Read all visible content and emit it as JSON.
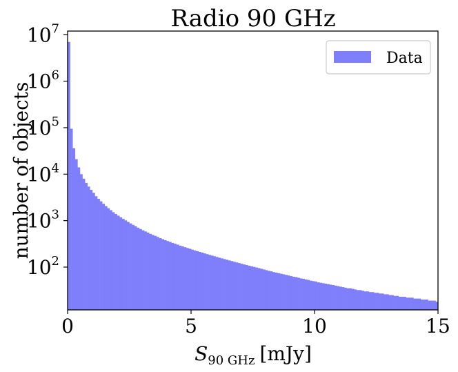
{
  "chart_data": {
    "type": "bar",
    "title": "Radio 90 GHz",
    "xlabel": "S90 GHz [mJy]",
    "xlabel_main": "S",
    "xlabel_sub": "90 GHz",
    "xlabel_unit": "[mJy]",
    "ylabel": "number of objects",
    "x_scale": "linear",
    "y_scale": "log",
    "xlim": [
      0,
      15
    ],
    "ylim": [
      12,
      12000000
    ],
    "x_ticks": [
      0,
      5,
      10,
      15
    ],
    "x_tick_labels": [
      "0",
      "5",
      "10",
      "15"
    ],
    "y_ticks": [
      100,
      1000,
      10000,
      100000,
      1000000,
      10000000
    ],
    "y_tick_labels": [
      {
        "base": "10",
        "exp": "2"
      },
      {
        "base": "10",
        "exp": "3"
      },
      {
        "base": "10",
        "exp": "4"
      },
      {
        "base": "10",
        "exp": "5"
      },
      {
        "base": "10",
        "exp": "6"
      },
      {
        "base": "10",
        "exp": "7"
      }
    ],
    "grid": false,
    "legend_position": "top-right",
    "bin_width": 0.1,
    "bin_start": 0,
    "series": [
      {
        "name": "Data",
        "color": "#7f7ffc",
        "values": [
          7000000,
          95000,
          36000,
          21000,
          14000,
          10000,
          8000,
          6500,
          5400,
          4600,
          3950,
          3350,
          2950,
          2600,
          2300,
          2050,
          1850,
          1680,
          1520,
          1390,
          1280,
          1180,
          1090,
          1010,
          935,
          870,
          810,
          755,
          705,
          660,
          620,
          585,
          553,
          520,
          493,
          470,
          445,
          420,
          400,
          380,
          364,
          348,
          332,
          318,
          305,
          290,
          280,
          268,
          258,
          248,
          238,
          228,
          220,
          212,
          205,
          197,
          190,
          183,
          177,
          171,
          165,
          159,
          154,
          149,
          144,
          139,
          135,
          130,
          126,
          122,
          118,
          114,
          111,
          107,
          104,
          101,
          98,
          95,
          92,
          89,
          86,
          83,
          81,
          78,
          76,
          74,
          72,
          70,
          68,
          66,
          64,
          62,
          61,
          59,
          57,
          56,
          54,
          53,
          51,
          50,
          49,
          47,
          46,
          45,
          44,
          43,
          42,
          41,
          40,
          39,
          38,
          37,
          36,
          35,
          35,
          34,
          33,
          32,
          32,
          31,
          30,
          30,
          29,
          29,
          28,
          28,
          27,
          27,
          26,
          26,
          25,
          25,
          24,
          24,
          23,
          23,
          23,
          22,
          22,
          22,
          21,
          21,
          21,
          20,
          20,
          20,
          19,
          19,
          19,
          18
        ]
      }
    ]
  }
}
